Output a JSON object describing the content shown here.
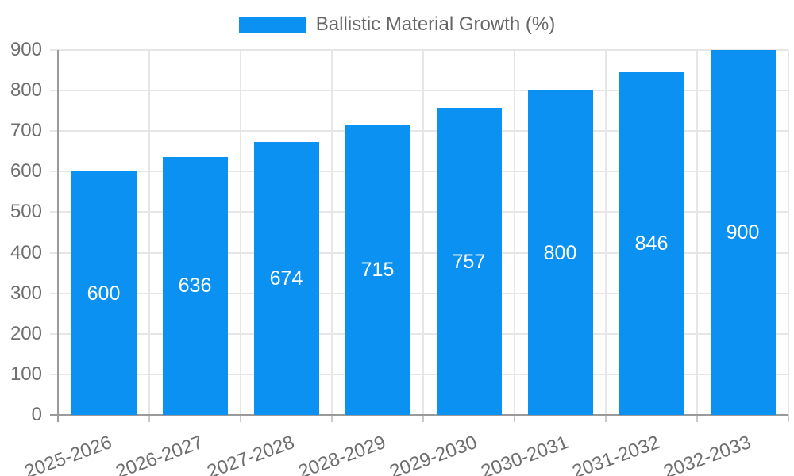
{
  "chart_data": {
    "type": "bar",
    "title": "Ballistic Material Growth (%)",
    "categories": [
      "2025-2026",
      "2026-2027",
      "2027-2028",
      "2028-2029",
      "2029-2030",
      "2030-2031",
      "2031-2032",
      "2032-2033"
    ],
    "values": [
      600,
      636,
      674,
      715,
      757,
      800,
      846,
      900
    ],
    "xlabel": "",
    "ylabel": "",
    "ylim": [
      0,
      900
    ],
    "yticks": [
      0,
      100,
      200,
      300,
      400,
      500,
      600,
      700,
      800,
      900
    ],
    "grid": true,
    "legend_position": "top-center",
    "x_tick_rotation_deg": -20,
    "value_labels_inside_bars": true,
    "colors": {
      "bar": "#0a91f2",
      "value_label": "#ffffff",
      "gridline": "#e6e6e6",
      "axis_line": "#9a9a9a",
      "bottom_tick": "#c9c9c9",
      "tick_label": "#6e6e6e",
      "legend_text": "#666666"
    }
  }
}
